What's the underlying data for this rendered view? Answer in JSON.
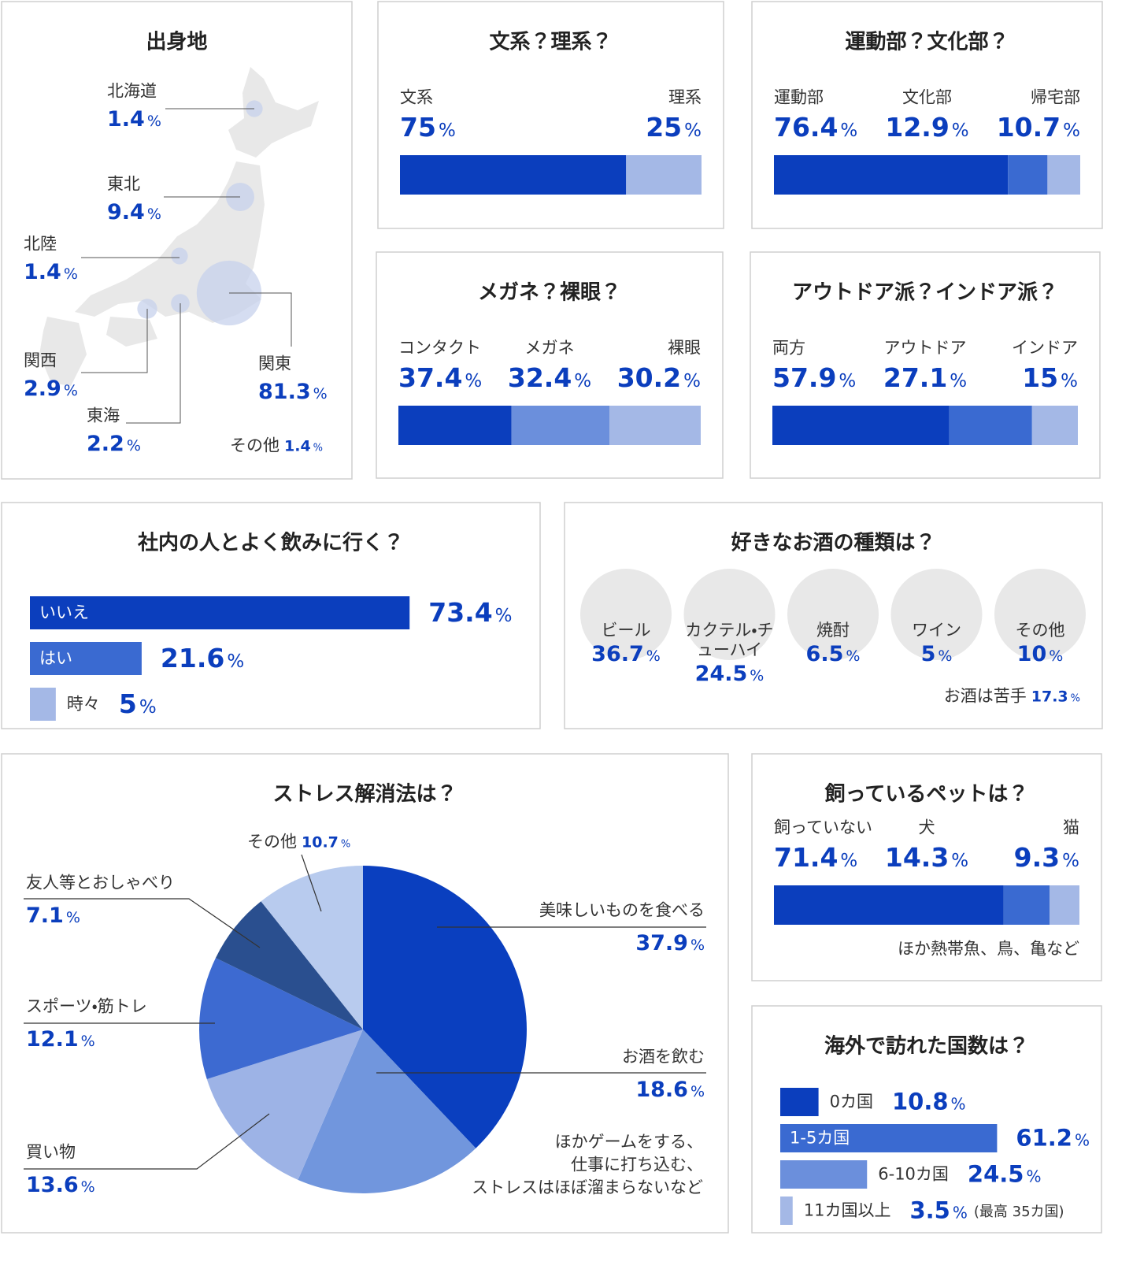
{
  "unit": "%",
  "chart_data": [
    {
      "type": "bubble-map",
      "title": "出身地",
      "categories": [
        "北海道",
        "東北",
        "北陸",
        "関西",
        "東海",
        "関東"
      ],
      "values": [
        1.4,
        9.4,
        1.4,
        2.9,
        2.2,
        81.3
      ],
      "other": {
        "label": "その他",
        "value": 1.4
      },
      "color": "#c7d1ec"
    },
    {
      "type": "stacked-bar",
      "title": "文系？理系？",
      "categories": [
        "文系",
        "理系"
      ],
      "values": [
        75,
        25
      ],
      "colors": [
        "#0b3ebd",
        "#a4b8e6"
      ]
    },
    {
      "type": "stacked-bar",
      "title": "運動部？文化部？",
      "categories": [
        "運動部",
        "文化部",
        "帰宅部"
      ],
      "values": [
        76.4,
        12.9,
        10.7
      ],
      "colors": [
        "#0b3ebd",
        "#3a6ad1",
        "#a4b8e6"
      ]
    },
    {
      "type": "stacked-bar",
      "title": "メガネ？裸眼？",
      "categories": [
        "コンタクト",
        "メガネ",
        "裸眼"
      ],
      "values": [
        37.4,
        32.4,
        30.2
      ],
      "colors": [
        "#0b3ebd",
        "#6b8fdc",
        "#a4b8e6"
      ]
    },
    {
      "type": "stacked-bar",
      "title": "アウトドア派？インドア派？",
      "categories": [
        "両方",
        "アウトドア",
        "インドア"
      ],
      "values": [
        57.9,
        27.1,
        15
      ],
      "colors": [
        "#0b3ebd",
        "#3a6ad1",
        "#a4b8e6"
      ]
    },
    {
      "type": "bar",
      "title": "社内の人とよく飲みに行く？",
      "categories": [
        "いいえ",
        "はい",
        "時々"
      ],
      "values": [
        73.4,
        21.6,
        5
      ],
      "colors": [
        "#0b3ebd",
        "#3a6ad1",
        "#a4b8e6"
      ]
    },
    {
      "type": "icon-circles",
      "title": "好きなお酒の種類は？",
      "categories": [
        "ビール",
        "カクテル・チューハイ",
        "焼酎",
        "ワイン",
        "その他"
      ],
      "values": [
        36.7,
        24.5,
        6.5,
        5,
        10
      ],
      "other": {
        "label": "お酒は苦手",
        "value": 17.3
      }
    },
    {
      "type": "pie",
      "title": "ストレス解消法は？",
      "categories": [
        "美味しいものを食べる",
        "お酒を飲む",
        "買い物",
        "スポーツ・筋トレ",
        "友人等とおしゃべり",
        "その他"
      ],
      "values": [
        37.9,
        18.6,
        13.6,
        12.1,
        7.1,
        10.7
      ],
      "colors": [
        "#0a3fbf",
        "#7196dd",
        "#9db3e6",
        "#3d6ad1",
        "#2a4f8f",
        "#b8cbee"
      ],
      "note": [
        "ほかゲームをする、",
        "仕事に打ち込む、",
        "ストレスはほぼ溜まらないなど"
      ]
    },
    {
      "type": "stacked-bar",
      "title": "飼っているペットは？",
      "categories": [
        "飼っていない",
        "犬",
        "猫"
      ],
      "values": [
        71.4,
        14.3,
        9.3
      ],
      "colors": [
        "#0b3ebd",
        "#3a6ad1",
        "#a4b8e6"
      ],
      "note": "ほか熱帯魚、鳥、亀など"
    },
    {
      "type": "bar",
      "title": "海外で訪れた国数は？",
      "categories": [
        "0カ国",
        "1-5カ国",
        "6-10カ国",
        "11カ国以上"
      ],
      "values": [
        10.8,
        61.2,
        24.5,
        3.5
      ],
      "colors": [
        "#0b3ebd",
        "#3a6ad1",
        "#6b8fdc",
        "#a4b8e6"
      ],
      "note": "(最高 35カ国)"
    }
  ]
}
